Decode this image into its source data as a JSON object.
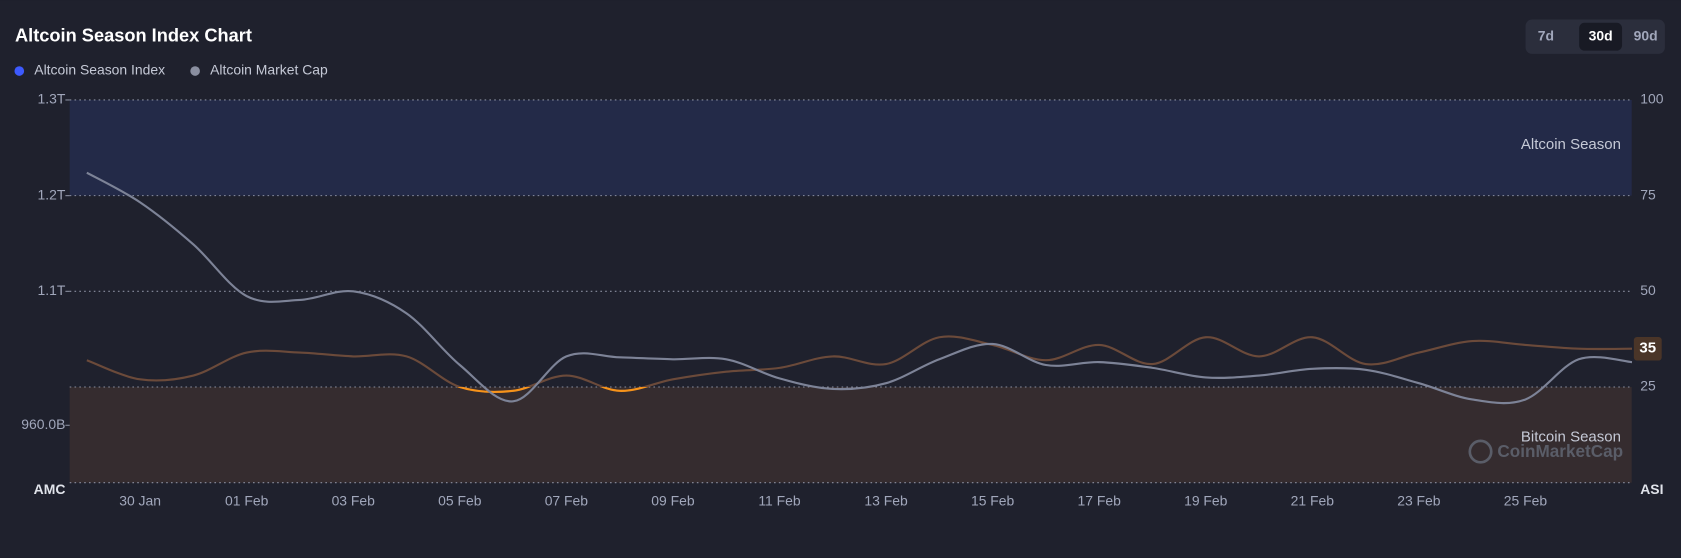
{
  "chart_data": {
    "type": "line",
    "title": "Altcoin Season Index Chart",
    "range_buttons": [
      "7d",
      "30d",
      "90d"
    ],
    "active_range": "30d",
    "categories": [
      null,
      "30 Jan",
      null,
      "01 Feb",
      null,
      "03 Feb",
      null,
      "05 Feb",
      null,
      "07 Feb",
      null,
      "09 Feb",
      null,
      "11 Feb",
      null,
      "13 Feb",
      null,
      "15 Feb",
      null,
      "17 Feb",
      null,
      "19 Feb",
      null,
      "21 Feb",
      null,
      "23 Feb",
      null,
      "25 Feb",
      null,
      null
    ],
    "series": [
      {
        "name": "Altcoin Season Index",
        "color": "#3d5afe",
        "line_color": "#6b4a3a",
        "below_band_color": "#f7931a",
        "axis": "y2",
        "values": [
          32,
          27,
          28,
          34,
          34,
          33,
          33,
          25,
          24,
          28,
          24,
          27,
          29,
          30,
          33,
          31,
          38,
          36,
          32,
          36,
          31,
          38,
          33,
          38,
          31,
          34,
          37,
          36,
          35,
          35
        ]
      },
      {
        "name": "Altcoin Market Cap",
        "color": "#8a8fa0",
        "line_color": "#7d8397",
        "values": [
          1224000000000,
          1193000000000,
          1149000000000,
          1095000000000,
          1091000000000,
          1100000000000,
          1077000000000,
          1023000000000,
          985000000000,
          1032000000000,
          1031000000000,
          1029000000000,
          1029000000000,
          1009000000000,
          998000000000,
          1004000000000,
          1029000000000,
          1045000000000,
          1023000000000,
          1026000000000,
          1020000000000,
          1010000000000,
          1012000000000,
          1019000000000,
          1018000000000,
          1004000000000,
          987000000000,
          987000000000,
          1029000000000,
          1026000000000
        ]
      }
    ],
    "y_axis_label": "AMC",
    "ylim": [
      900000000000,
      1300000000000
    ],
    "yticks": [
      {
        "value": 960000000000,
        "label": "960.0B"
      },
      {
        "value": 1100000000000,
        "label": "1.1T"
      },
      {
        "value": 1200000000000,
        "label": "1.2T"
      },
      {
        "value": 1300000000000,
        "label": "1.3T"
      }
    ],
    "y2_axis_label": "ASI",
    "y2lim": [
      0,
      100
    ],
    "y2ticks": [
      25,
      50,
      75,
      100
    ],
    "grid": true,
    "bands": [
      {
        "label": "Altcoin Season",
        "from": 75,
        "to": 100,
        "color": "#232a48"
      },
      {
        "label": "Bitcoin Season",
        "from": 0,
        "to": 25,
        "color": "#352c2f"
      }
    ],
    "watermark": "CoinMarketCap"
  }
}
